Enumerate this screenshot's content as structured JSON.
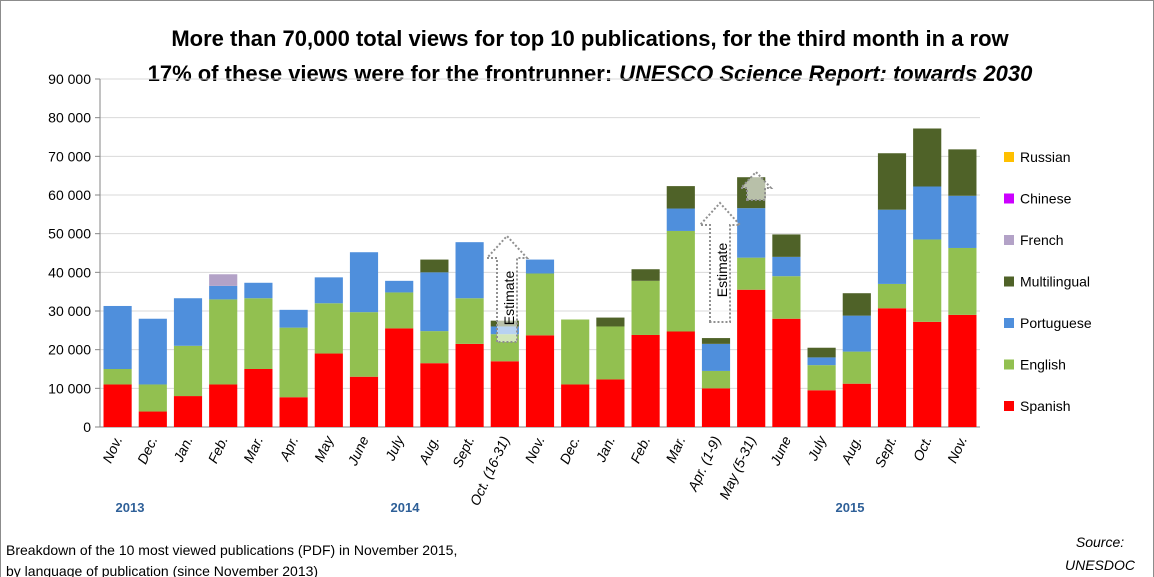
{
  "chart_data": {
    "type": "bar",
    "stacked": true,
    "title": [
      "More than 70,000 total views for top 10 publications, for the third month in a row",
      "17% of these views were for the frontrunner:",
      "UNESCO Science Report: towards 2030"
    ],
    "categories": [
      "Nov.",
      "Dec.",
      "Jan.",
      "Feb.",
      "Mar.",
      "Apr.",
      "May",
      "June",
      "July",
      "Aug.",
      "Sept.",
      "Oct. (16-31)",
      "Nov.",
      "Dec.",
      "Jan.",
      "Feb.",
      "Mar.",
      "Apr. (1-9)",
      "May (5-31)",
      "June",
      "July",
      "Aug.",
      "Sept.",
      "Oct.",
      "Nov."
    ],
    "years": [
      "2013",
      "2014",
      "2015"
    ],
    "series": [
      {
        "name": "Spanish",
        "color": "#ff0000",
        "values": [
          11000,
          4000,
          8000,
          11000,
          15000,
          7700,
          19000,
          13000,
          25500,
          16500,
          21500,
          17000,
          23700,
          11000,
          12300,
          23800,
          24700,
          10000,
          35500,
          28000,
          9500,
          11200,
          30700,
          27200,
          29000
        ]
      },
      {
        "name": "English",
        "color": "#92c050",
        "values": [
          4000,
          7000,
          13000,
          22000,
          18300,
          18000,
          13000,
          16700,
          9300,
          8300,
          11800,
          7000,
          16000,
          16800,
          13700,
          14000,
          26000,
          4500,
          8300,
          11000,
          6500,
          8300,
          6300,
          21300,
          17300
        ]
      },
      {
        "name": "Portuguese",
        "color": "#4f8fdc",
        "values": [
          16300,
          17000,
          12300,
          3500,
          4000,
          4600,
          6700,
          15500,
          3000,
          15200,
          14500,
          2000,
          3600,
          0,
          0,
          0,
          5800,
          7000,
          12800,
          5000,
          2000,
          9300,
          19200,
          13700,
          13500
        ]
      },
      {
        "name": "Multilingual",
        "color": "#4f6228",
        "values": [
          0,
          0,
          0,
          0,
          0,
          0,
          0,
          0,
          0,
          3300,
          0,
          1500,
          0,
          0,
          2300,
          3000,
          5800,
          1500,
          8000,
          5800,
          2500,
          5800,
          14600,
          15000,
          12000
        ]
      },
      {
        "name": "French",
        "color": "#b3a2c7",
        "values": [
          0,
          0,
          0,
          3000,
          0,
          0,
          0,
          0,
          0,
          0,
          0,
          0,
          0,
          0,
          0,
          0,
          0,
          0,
          0,
          0,
          0,
          0,
          0,
          0,
          0
        ]
      },
      {
        "name": "Chinese",
        "color": "#cc00ff",
        "values": [
          0,
          0,
          0,
          0,
          0,
          0,
          0,
          0,
          0,
          0,
          0,
          0,
          0,
          0,
          0,
          0,
          0,
          0,
          0,
          0,
          0,
          0,
          0,
          0,
          0
        ]
      },
      {
        "name": "Russian",
        "color": "#ffc000",
        "values": [
          0,
          0,
          0,
          0,
          0,
          0,
          0,
          0,
          0,
          0,
          0,
          0,
          0,
          0,
          0,
          0,
          0,
          0,
          0,
          0,
          0,
          0,
          0,
          0,
          0
        ]
      }
    ],
    "ylim": [
      0,
      90000
    ],
    "yticks": [
      0,
      {
        "value": 10000,
        "label": "10 000"
      },
      {
        "value": 20000,
        "label": "20 000"
      },
      {
        "value": 30000,
        "label": "30 000"
      },
      {
        "value": 40000,
        "label": "40 000"
      },
      {
        "value": 50000,
        "label": "50 000"
      },
      {
        "value": 60000,
        "label": "60 000"
      },
      {
        "value": 70000,
        "label": "70 000"
      },
      {
        "value": 80000,
        "label": "80 000"
      },
      {
        "value": 90000,
        "label": "90 000"
      }
    ],
    "grid": true,
    "legend": "right",
    "annotations": [
      "Estimate",
      "Estimate"
    ],
    "footnote": [
      "Breakdown of the 10 most viewed publications (PDF) in November 2015,",
      "by language of publication (since November 2013)"
    ],
    "source": [
      "Source:",
      "UNESDOC"
    ]
  }
}
